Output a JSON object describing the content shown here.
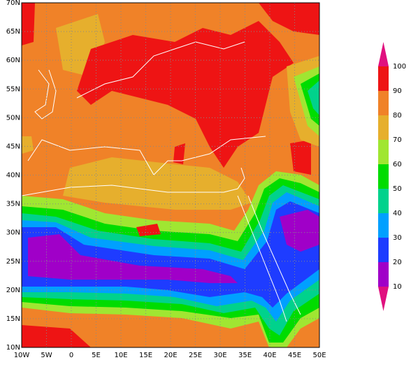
{
  "map": {
    "lon_ticks": [
      {
        "value": -10,
        "label": "10W"
      },
      {
        "value": -5,
        "label": "5W"
      },
      0,
      {
        "value": 5,
        "label": "5E"
      },
      {
        "value": 10,
        "label": "10E"
      },
      {
        "value": 15,
        "label": "15E"
      },
      {
        "value": 20,
        "label": "20E"
      },
      {
        "value": 25,
        "label": "25E"
      },
      {
        "value": 30,
        "label": "30E"
      },
      {
        "value": 35,
        "label": "35E"
      },
      {
        "value": 40,
        "label": "40E"
      },
      {
        "value": 45,
        "label": "45E"
      },
      {
        "value": 50,
        "label": "50E"
      }
    ],
    "lat_ticks": [
      {
        "value": 10,
        "label": "10N"
      },
      {
        "value": 15,
        "label": "15N"
      },
      {
        "value": 20,
        "label": "20N"
      },
      {
        "value": 25,
        "label": "25N"
      },
      {
        "value": 30,
        "label": "30N"
      },
      {
        "value": 35,
        "label": "35N"
      },
      {
        "value": 40,
        "label": "40N"
      },
      {
        "value": 45,
        "label": "45N"
      },
      {
        "value": 50,
        "label": "50N"
      },
      {
        "value": 55,
        "label": "55N"
      },
      {
        "value": 60,
        "label": "60N"
      },
      {
        "value": 65,
        "label": "65N"
      },
      {
        "value": 70,
        "label": "70N"
      }
    ],
    "colorbar": {
      "levels": [
        10,
        20,
        30,
        40,
        50,
        60,
        70,
        80,
        90,
        100
      ],
      "colors": [
        "#e0107f",
        "#a000c8",
        "#1e3cff",
        "#00a0ff",
        "#00d28c",
        "#00dc00",
        "#a0e632",
        "#e6af2d",
        "#f08228",
        "#ee1414",
        "#e0107f"
      ]
    }
  }
}
